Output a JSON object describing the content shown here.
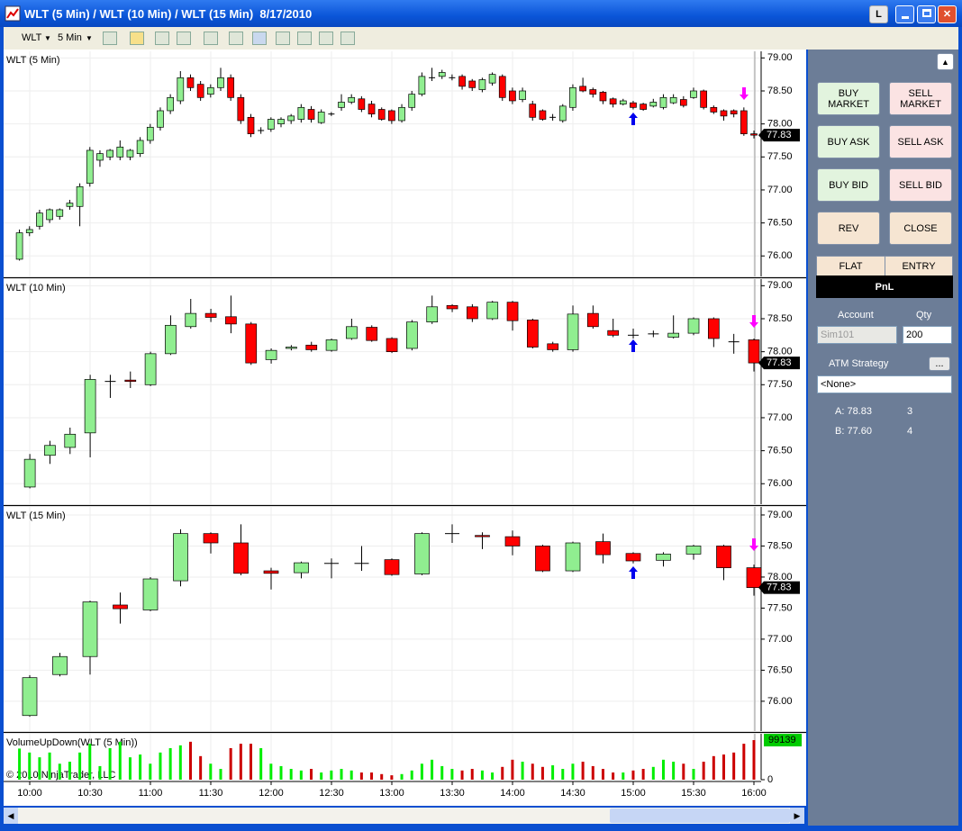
{
  "window": {
    "title": "WLT (5 Min) / WLT (10 Min) / WLT (15 Min)  8/17/2010",
    "button": "L"
  },
  "toolbar": {
    "instrument": "WLT",
    "interval": "5 Min"
  },
  "time_axis": [
    "10:00",
    "10:30",
    "11:00",
    "11:30",
    "12:00",
    "12:30",
    "13:00",
    "13:30",
    "14:00",
    "14:30",
    "15:00",
    "15:30",
    "16:00"
  ],
  "copyright": "© 2010 NinjaTrader, LLC",
  "chart_data": [
    {
      "type": "candlestick",
      "title": "WLT (5 Min)",
      "up_color": "#90ee90",
      "down_color": "#ff0000",
      "ylim": [
        75.69,
        79.1
      ],
      "yticks": [
        {
          "value": 79,
          "label": "79.00"
        },
        {
          "value": 78.5,
          "label": "78.50"
        },
        {
          "value": 78,
          "label": "78.00"
        },
        {
          "value": 77.5,
          "label": "77.50"
        },
        {
          "value": 77,
          "label": "77.00"
        },
        {
          "value": 76.5,
          "label": "76.50"
        },
        {
          "value": 76,
          "label": "76.00"
        }
      ],
      "candles": [
        [
          75.95,
          76.4,
          75.93,
          76.35
        ],
        [
          76.35,
          76.45,
          76.3,
          76.4
        ],
        [
          76.45,
          76.7,
          76.4,
          76.65
        ],
        [
          76.55,
          76.72,
          76.5,
          76.7
        ],
        [
          76.6,
          76.72,
          76.55,
          76.7
        ],
        [
          76.75,
          76.85,
          76.7,
          76.8
        ],
        [
          76.75,
          77.1,
          76.45,
          77.05
        ],
        [
          77.1,
          77.65,
          77.05,
          77.6
        ],
        [
          77.45,
          77.6,
          77.35,
          77.55
        ],
        [
          77.5,
          77.62,
          77.45,
          77.6
        ],
        [
          77.5,
          77.75,
          77.45,
          77.65
        ],
        [
          77.5,
          77.62,
          77.45,
          77.6
        ],
        [
          77.55,
          77.8,
          77.5,
          77.75
        ],
        [
          77.75,
          78.0,
          77.7,
          77.95
        ],
        [
          77.95,
          78.25,
          77.9,
          78.2
        ],
        [
          78.2,
          78.45,
          78.15,
          78.4
        ],
        [
          78.35,
          78.8,
          78.3,
          78.7
        ],
        [
          78.7,
          78.75,
          78.5,
          78.55
        ],
        [
          78.6,
          78.65,
          78.35,
          78.4
        ],
        [
          78.45,
          78.6,
          78.4,
          78.55
        ],
        [
          78.55,
          78.85,
          78.5,
          78.7
        ],
        [
          78.7,
          78.75,
          78.35,
          78.4
        ],
        [
          78.4,
          78.45,
          78.0,
          78.05
        ],
        [
          78.1,
          78.15,
          77.8,
          77.85
        ],
        [
          77.9,
          77.95,
          77.85,
          77.9
        ],
        [
          77.92,
          78.1,
          77.88,
          78.07
        ],
        [
          78.0,
          78.1,
          77.95,
          78.07
        ],
        [
          78.05,
          78.15,
          78.0,
          78.12
        ],
        [
          78.07,
          78.3,
          78.02,
          78.25
        ],
        [
          78.22,
          78.27,
          78.02,
          78.07
        ],
        [
          78.02,
          78.22,
          78.0,
          78.18
        ],
        [
          78.15,
          78.18,
          78.12,
          78.15
        ],
        [
          78.25,
          78.45,
          78.2,
          78.33
        ],
        [
          78.33,
          78.45,
          78.3,
          78.4
        ],
        [
          78.38,
          78.42,
          78.18,
          78.22
        ],
        [
          78.3,
          78.35,
          78.1,
          78.15
        ],
        [
          78.22,
          78.25,
          78.05,
          78.07
        ],
        [
          78.2,
          78.22,
          78.0,
          78.05
        ],
        [
          78.05,
          78.3,
          78.02,
          78.25
        ],
        [
          78.25,
          78.5,
          78.2,
          78.45
        ],
        [
          78.45,
          78.78,
          78.42,
          78.72
        ],
        [
          78.7,
          78.85,
          78.65,
          78.7
        ],
        [
          78.72,
          78.82,
          78.68,
          78.78
        ],
        [
          78.7,
          78.75,
          78.66,
          78.7
        ],
        [
          78.72,
          78.75,
          78.52,
          78.57
        ],
        [
          78.65,
          78.68,
          78.5,
          78.55
        ],
        [
          78.52,
          78.7,
          78.48,
          78.67
        ],
        [
          78.62,
          78.78,
          78.58,
          78.75
        ],
        [
          78.72,
          78.75,
          78.35,
          78.4
        ],
        [
          78.5,
          78.55,
          78.3,
          78.35
        ],
        [
          78.37,
          78.55,
          78.33,
          78.5
        ],
        [
          78.3,
          78.35,
          78.05,
          78.1
        ],
        [
          78.2,
          78.22,
          78.05,
          78.07
        ],
        [
          78.1,
          78.15,
          78.05,
          78.1
        ],
        [
          78.05,
          78.3,
          78.02,
          78.27
        ],
        [
          78.25,
          78.6,
          78.2,
          78.55
        ],
        [
          78.57,
          78.7,
          78.48,
          78.5
        ],
        [
          78.52,
          78.55,
          78.4,
          78.45
        ],
        [
          78.48,
          78.5,
          78.3,
          78.35
        ],
        [
          78.38,
          78.4,
          78.25,
          78.3
        ],
        [
          78.3,
          78.38,
          78.28,
          78.35
        ],
        [
          78.32,
          78.35,
          78.22,
          78.25
        ],
        [
          78.3,
          78.32,
          78.2,
          78.22
        ],
        [
          78.27,
          78.38,
          78.25,
          78.33
        ],
        [
          78.25,
          78.45,
          78.22,
          78.4
        ],
        [
          78.32,
          78.45,
          78.3,
          78.4
        ],
        [
          78.37,
          78.42,
          78.25,
          78.28
        ],
        [
          78.4,
          78.55,
          78.38,
          78.5
        ],
        [
          78.5,
          78.52,
          78.22,
          78.25
        ],
        [
          78.25,
          78.28,
          78.15,
          78.18
        ],
        [
          78.2,
          78.22,
          78.05,
          78.12
        ],
        [
          78.2,
          78.22,
          78.1,
          78.15
        ],
        [
          78.2,
          78.25,
          77.82,
          77.85
        ],
        [
          77.85,
          77.9,
          77.78,
          77.83
        ]
      ]
    },
    {
      "type": "candlestick",
      "title": "WLT (10 Min)",
      "up_color": "#90ee90",
      "down_color": "#ff0000",
      "ylim": [
        75.69,
        79.1
      ],
      "yticks": [
        {
          "value": 79,
          "label": "79.00"
        },
        {
          "value": 78.5,
          "label": "78.50"
        },
        {
          "value": 78,
          "label": "78.00"
        },
        {
          "value": 77.5,
          "label": "77.50"
        },
        {
          "value": 77,
          "label": "77.00"
        },
        {
          "value": 76.5,
          "label": "76.50"
        },
        {
          "value": 76,
          "label": "76.00"
        }
      ],
      "candles": [
        [
          75.95,
          76.45,
          75.93,
          76.37
        ],
        [
          76.43,
          76.65,
          76.3,
          76.58
        ],
        [
          76.55,
          76.85,
          76.45,
          76.75
        ],
        [
          76.77,
          77.65,
          76.4,
          77.58
        ],
        [
          77.55,
          77.65,
          77.3,
          77.55
        ],
        [
          77.57,
          77.7,
          77.45,
          77.55
        ],
        [
          77.5,
          78.0,
          77.48,
          77.97
        ],
        [
          77.97,
          78.55,
          77.95,
          78.4
        ],
        [
          78.38,
          78.8,
          78.35,
          78.58
        ],
        [
          78.58,
          78.65,
          78.45,
          78.52
        ],
        [
          78.53,
          78.85,
          78.28,
          78.42
        ],
        [
          78.42,
          78.45,
          77.8,
          77.83
        ],
        [
          77.88,
          78.05,
          77.82,
          78.02
        ],
        [
          78.05,
          78.1,
          78.02,
          78.07
        ],
        [
          78.1,
          78.15,
          78.0,
          78.03
        ],
        [
          78.02,
          78.2,
          78.0,
          78.18
        ],
        [
          78.2,
          78.5,
          78.18,
          78.38
        ],
        [
          78.37,
          78.4,
          78.15,
          78.17
        ],
        [
          78.2,
          78.22,
          77.98,
          78.0
        ],
        [
          78.05,
          78.48,
          78.02,
          78.45
        ],
        [
          78.45,
          78.85,
          78.42,
          78.68
        ],
        [
          78.7,
          78.72,
          78.6,
          78.65
        ],
        [
          78.68,
          78.72,
          78.45,
          78.5
        ],
        [
          78.5,
          78.77,
          78.48,
          78.75
        ],
        [
          78.75,
          78.77,
          78.32,
          78.47
        ],
        [
          78.48,
          78.5,
          78.05,
          78.07
        ],
        [
          78.12,
          78.15,
          78.0,
          78.03
        ],
        [
          78.03,
          78.7,
          78.0,
          78.57
        ],
        [
          78.58,
          78.7,
          78.35,
          78.38
        ],
        [
          78.32,
          78.5,
          78.22,
          78.25
        ],
        [
          78.25,
          78.35,
          78.2,
          78.25
        ],
        [
          78.27,
          78.32,
          78.22,
          78.27
        ],
        [
          78.22,
          78.55,
          78.2,
          78.28
        ],
        [
          78.28,
          78.52,
          78.25,
          78.5
        ],
        [
          78.5,
          78.52,
          78.07,
          78.2
        ],
        [
          78.15,
          78.27,
          77.97,
          78.15
        ],
        [
          78.18,
          78.2,
          77.7,
          77.83
        ]
      ]
    },
    {
      "type": "candlestick",
      "title": "WLT (15 Min)",
      "up_color": "#90ee90",
      "down_color": "#ff0000",
      "ylim": [
        75.52,
        79.13
      ],
      "yticks": [
        {
          "value": 79,
          "label": "79.00"
        },
        {
          "value": 78.5,
          "label": "78.50"
        },
        {
          "value": 78,
          "label": "78.00"
        },
        {
          "value": 77.5,
          "label": "77.50"
        },
        {
          "value": 77,
          "label": "77.00"
        },
        {
          "value": 76.5,
          "label": "76.50"
        },
        {
          "value": 76,
          "label": "76.00"
        }
      ],
      "candles": [
        [
          75.77,
          76.42,
          75.75,
          76.38
        ],
        [
          76.43,
          76.78,
          76.4,
          76.72
        ],
        [
          76.72,
          77.62,
          76.43,
          77.6
        ],
        [
          77.55,
          77.75,
          77.25,
          77.49
        ],
        [
          77.47,
          78.0,
          77.45,
          77.97
        ],
        [
          77.94,
          78.77,
          77.85,
          78.7
        ],
        [
          78.7,
          78.72,
          78.38,
          78.55
        ],
        [
          78.55,
          78.85,
          78.03,
          78.06
        ],
        [
          78.1,
          78.15,
          77.8,
          78.06
        ],
        [
          78.07,
          78.25,
          77.98,
          78.23
        ],
        [
          78.22,
          78.3,
          77.98,
          78.22
        ],
        [
          78.22,
          78.5,
          78.1,
          78.22
        ],
        [
          78.28,
          78.3,
          78.02,
          78.04
        ],
        [
          78.05,
          78.72,
          78.03,
          78.7
        ],
        [
          78.7,
          78.85,
          78.55,
          78.7
        ],
        [
          78.67,
          78.72,
          78.45,
          78.65
        ],
        [
          78.65,
          78.75,
          78.35,
          78.5
        ],
        [
          78.5,
          78.52,
          78.08,
          78.1
        ],
        [
          78.1,
          78.57,
          78.08,
          78.55
        ],
        [
          78.57,
          78.7,
          78.22,
          78.36
        ],
        [
          78.38,
          78.4,
          78.22,
          78.26
        ],
        [
          78.27,
          78.4,
          78.17,
          78.37
        ],
        [
          78.37,
          78.52,
          78.28,
          78.5
        ],
        [
          78.5,
          78.52,
          77.95,
          78.15
        ],
        [
          78.15,
          78.2,
          77.7,
          77.83
        ]
      ]
    },
    {
      "type": "bar",
      "title": "VolumeUpDown(WLT (5 Min))",
      "up_color": "#00ee00",
      "down_color": "#cc0000",
      "ylim": [
        0,
        115000
      ],
      "yticks": [
        0
      ],
      "values": [
        78000,
        68000,
        56000,
        68000,
        40000,
        45000,
        68000,
        90000,
        34000,
        79000,
        95000,
        56000,
        63000,
        40000,
        68000,
        79000,
        86000,
        95000,
        59000,
        40000,
        27000,
        79000,
        90000,
        90000,
        79000,
        40000,
        34000,
        27000,
        23000,
        27000,
        18000,
        23000,
        27000,
        23000,
        18000,
        18000,
        14000,
        11000,
        14000,
        23000,
        40000,
        50000,
        34000,
        27000,
        23000,
        27000,
        23000,
        18000,
        32000,
        50000,
        45000,
        40000,
        32000,
        36000,
        27000,
        40000,
        45000,
        34000,
        27000,
        18000,
        18000,
        23000,
        27000,
        32000,
        50000,
        45000,
        40000,
        27000,
        45000,
        59000,
        63000,
        68000,
        90000,
        99139
      ]
    }
  ],
  "panel": {
    "buy_market": "BUY MARKET",
    "sell_market": "SELL MARKET",
    "buy_ask": "BUY ASK",
    "sell_ask": "SELL ASK",
    "buy_bid": "BUY BID",
    "sell_bid": "SELL BID",
    "rev": "REV",
    "close": "CLOSE",
    "flat": "FLAT",
    "entry": "ENTRY",
    "pnl": "PnL",
    "account_label": "Account",
    "qty_label": "Qty",
    "account": "Sim101",
    "qty": "200",
    "atm_label": "ATM Strategy",
    "atm_button": "...",
    "atm": "<None>",
    "ask": "A: 78.83",
    "ask_size": "3",
    "bid": "B: 77.60",
    "bid_size": "4"
  }
}
